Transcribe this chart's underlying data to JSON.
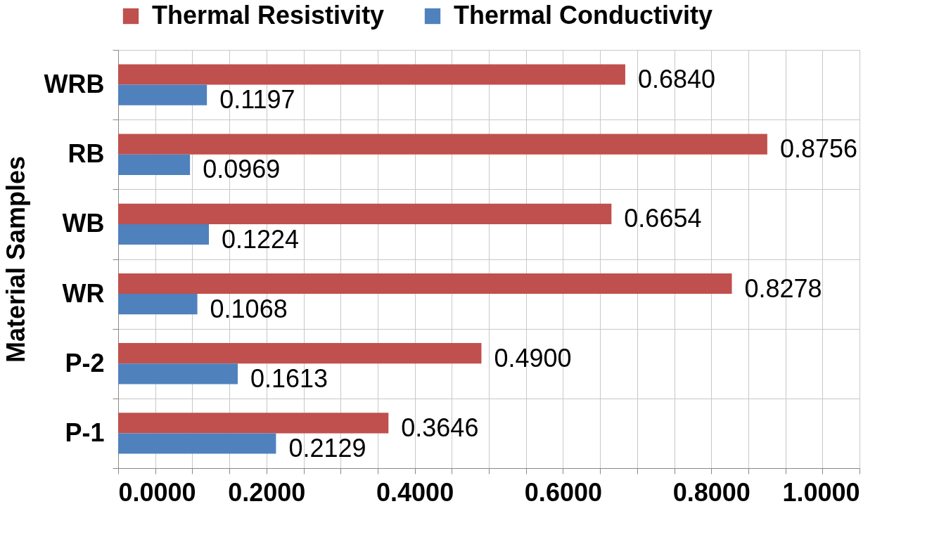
{
  "chart_data": {
    "type": "bar",
    "orientation": "horizontal",
    "ylabel": "Material Samples",
    "categories": [
      "WRB",
      "RB",
      "WB",
      "WR",
      "P-2",
      "P-1"
    ],
    "series": [
      {
        "name": "Thermal Resistivity",
        "color": "#c0504d",
        "values": [
          0.684,
          0.8756,
          0.6654,
          0.8278,
          0.49,
          0.3646
        ],
        "value_labels": [
          "0.6840",
          "0.8756",
          "0.6654",
          "0.8278",
          "0.4900",
          "0.3646"
        ]
      },
      {
        "name": "Thermal Conductivity",
        "color": "#4f81bd",
        "values": [
          0.1197,
          0.0969,
          0.1224,
          0.1068,
          0.1613,
          0.2129
        ],
        "value_labels": [
          "0.1197",
          "0.0969",
          "0.1224",
          "0.1068",
          "0.1613",
          "0.2129"
        ]
      }
    ],
    "xlim": [
      0,
      1
    ],
    "xticks": [
      {
        "value": 0,
        "label": "0.0000"
      },
      {
        "value": 0.05,
        "label": null
      },
      {
        "value": 0.1,
        "label": null
      },
      {
        "value": 0.15,
        "label": null
      },
      {
        "value": 0.2,
        "label": "0.2000"
      },
      {
        "value": 0.25,
        "label": null
      },
      {
        "value": 0.3,
        "label": null
      },
      {
        "value": 0.35,
        "label": null
      },
      {
        "value": 0.4,
        "label": "0.4000"
      },
      {
        "value": 0.45,
        "label": null
      },
      {
        "value": 0.5,
        "label": null
      },
      {
        "value": 0.55,
        "label": null
      },
      {
        "value": 0.6,
        "label": "0.6000"
      },
      {
        "value": 0.65,
        "label": null
      },
      {
        "value": 0.7,
        "label": null
      },
      {
        "value": 0.75,
        "label": null
      },
      {
        "value": 0.8,
        "label": "0.8000"
      },
      {
        "value": 0.85,
        "label": null
      },
      {
        "value": 0.9,
        "label": null
      },
      {
        "value": 0.95,
        "label": null
      },
      {
        "value": 1,
        "label": "1.0000"
      }
    ],
    "grid": true,
    "legend": "top"
  }
}
